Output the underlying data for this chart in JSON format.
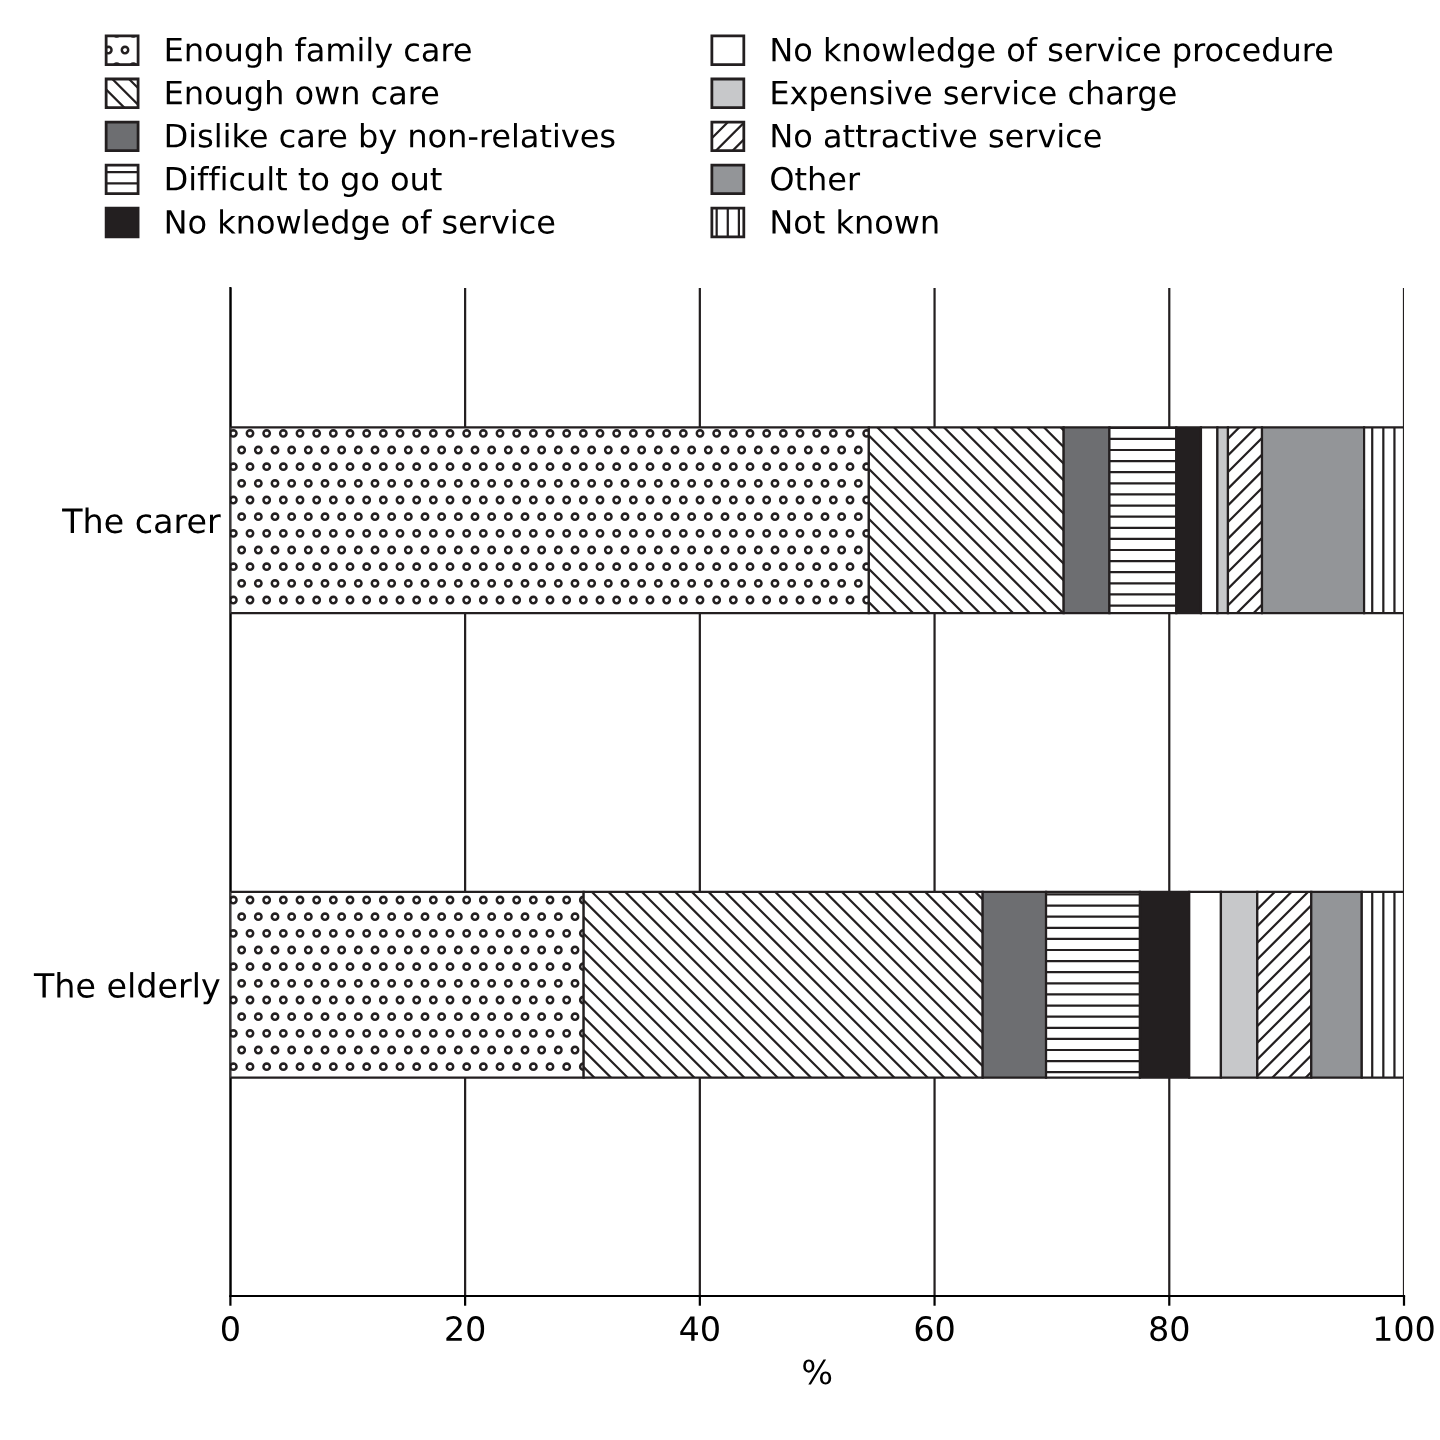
{
  "chart_data": {
    "type": "bar",
    "orientation": "horizontal",
    "stacked": true,
    "xlabel": "%",
    "categories": [
      "The carer",
      "The elderly"
    ],
    "series": [
      {
        "name": "Enough family care",
        "color": "#231f20",
        "values": [
          54.4,
          30.1
        ]
      },
      {
        "name": "Enough own care",
        "color": "#231f20",
        "values": [
          16.6,
          34.0
        ]
      },
      {
        "name": "Dislike care by non-relatives",
        "color": "#6d6e71",
        "values": [
          3.9,
          5.4
        ]
      },
      {
        "name": "Difficult to go out",
        "color": "#231f20",
        "values": [
          5.7,
          8.0
        ]
      },
      {
        "name": "No knowledge of service",
        "color": "#231f20",
        "values": [
          2.1,
          4.2
        ]
      },
      {
        "name": "No knowledge of service procedure",
        "color": "#ffffff",
        "values": [
          1.4,
          2.7
        ]
      },
      {
        "name": "Expensive service charge",
        "color": "#c7c8ca",
        "values": [
          0.9,
          3.1
        ]
      },
      {
        "name": "No attractive service",
        "color": "#231f20",
        "values": [
          2.9,
          4.6
        ]
      },
      {
        "name": "Other",
        "color": "#939598",
        "values": [
          8.7,
          4.3
        ]
      },
      {
        "name": "Not known",
        "color": "#231f20",
        "values": [
          3.4,
          3.6
        ]
      }
    ],
    "xlim": [
      0,
      100
    ],
    "xticks": [
      0,
      20,
      40,
      60,
      80,
      100
    ],
    "grid": "x",
    "legend": "top"
  }
}
